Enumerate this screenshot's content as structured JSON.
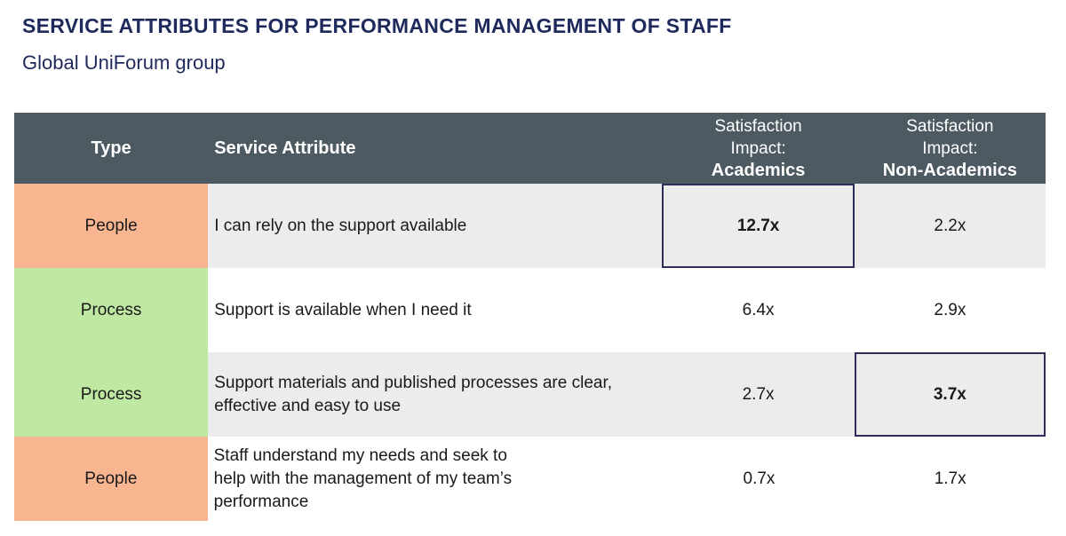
{
  "header": {
    "title": "SERVICE ATTRIBUTES FOR PERFORMANCE MANAGEMENT OF STAFF",
    "subtitle": "Global UniForum group"
  },
  "chart_data": {
    "type": "table",
    "columns": {
      "type": "Type",
      "attribute": "Service Attribute",
      "academics_line1": "Satisfaction",
      "academics_line2": "Impact:",
      "academics_line3": "Academics",
      "nonacademics_line1": "Satisfaction",
      "nonacademics_line2": "Impact:",
      "nonacademics_line3": "Non-Academics"
    },
    "rows": [
      {
        "type": "People",
        "attribute": "I can rely on the support available",
        "academics": "12.7x",
        "nonacademics": "2.2x",
        "highlight": "academics"
      },
      {
        "type": "Process",
        "attribute": "Support is available when I need it",
        "academics": "6.4x",
        "nonacademics": "2.9x",
        "highlight": ""
      },
      {
        "type": "Process",
        "attribute": "Support materials and published processes are clear, effective and easy to use",
        "academics": "2.7x",
        "nonacademics": "3.7x",
        "highlight": "nonacademics"
      },
      {
        "type": "People",
        "attribute": "Staff understand my needs and seek to help with the management of my team’s performance",
        "academics": "0.7x",
        "nonacademics": "1.7x",
        "highlight": ""
      }
    ],
    "colors": {
      "people": "#f7b690",
      "process": "#bfe8a2",
      "header": "#4e5a62",
      "highlight_border": "#2d2d5a"
    }
  }
}
